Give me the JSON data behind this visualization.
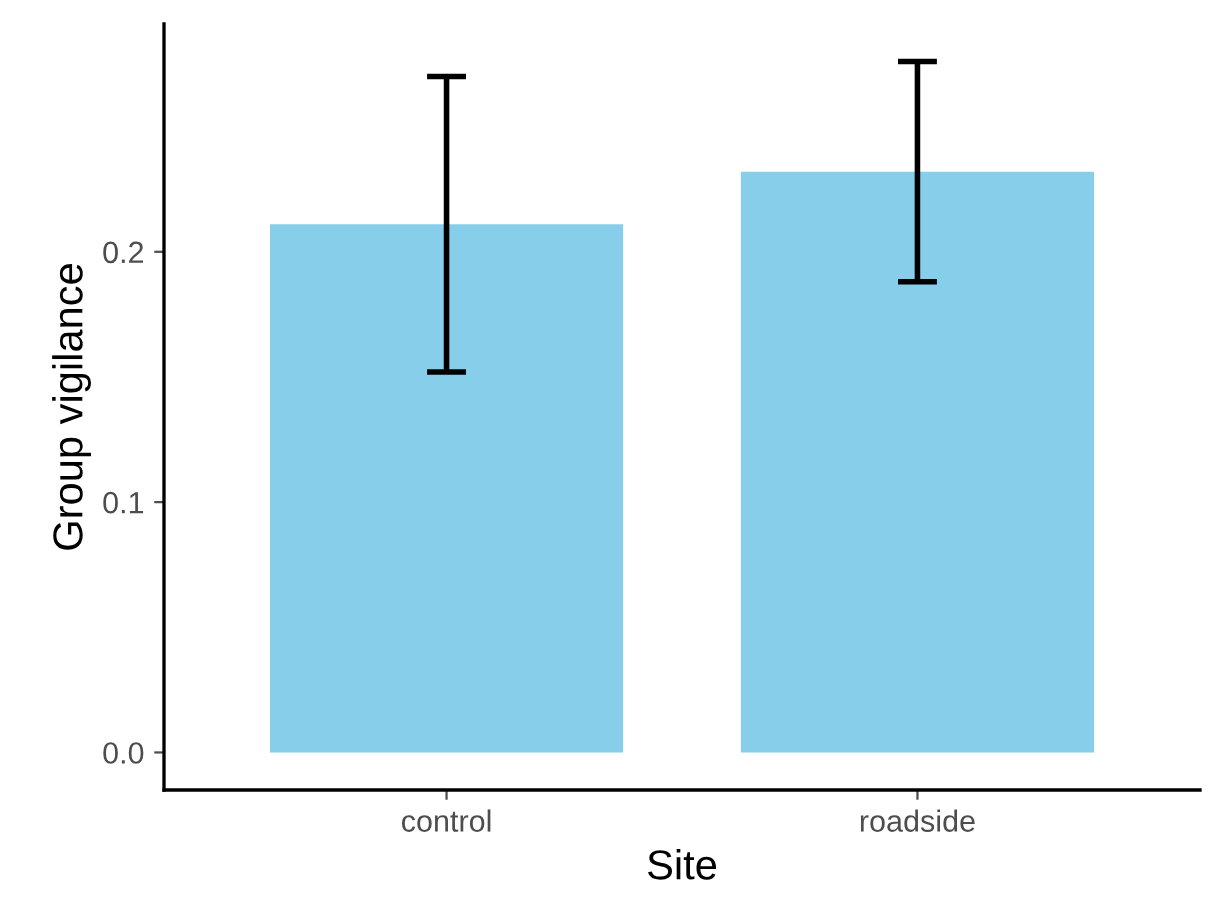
{
  "chart_data": {
    "type": "bar",
    "xlabel": "Site",
    "ylabel": "Group vigilance",
    "categories": [
      "control",
      "roadside"
    ],
    "values": [
      0.211,
      0.232
    ],
    "errors": [
      0.059,
      0.044
    ],
    "color": "#87ceeb",
    "ylim": [
      -0.015,
      0.291
    ],
    "yticks": [
      {
        "value": 0,
        "label": "0.0"
      },
      {
        "value": 0.1,
        "label": "0.1"
      },
      {
        "value": 0.2,
        "label": "0.2"
      }
    ],
    "grid": false,
    "legend": false
  }
}
